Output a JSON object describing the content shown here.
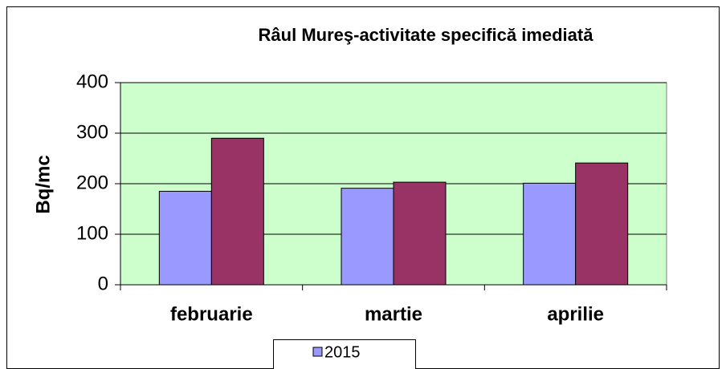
{
  "chart_data": {
    "type": "bar",
    "title": "Râul Mureş-activitate specifică imediată",
    "y_label": "Bq/mc",
    "categories": [
      "februarie",
      "martie",
      "aprilie"
    ],
    "series": [
      {
        "name": "2015",
        "color": "#9999ff",
        "values": [
          185,
          191,
          201
        ]
      },
      {
        "color": "#993366",
        "values": [
          290,
          203,
          241
        ]
      }
    ],
    "ylim": [
      0,
      400
    ],
    "yticks": [
      0,
      100,
      200,
      300,
      400
    ],
    "grid": true,
    "plot_background": "#ccffcc",
    "legend": "bottom"
  }
}
